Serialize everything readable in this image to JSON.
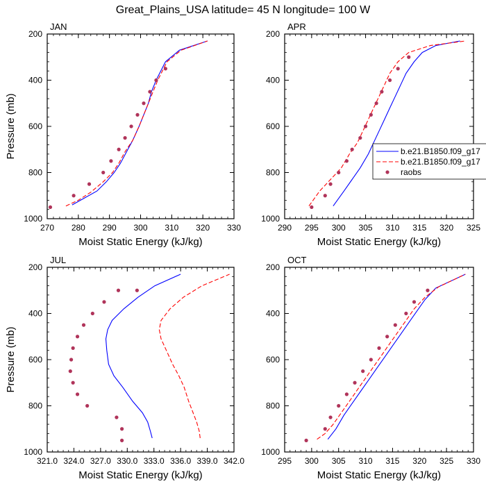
{
  "title": "Great_Plains_USA  latitude= 45 N longitude= 100 W",
  "legend": {
    "entries": [
      {
        "name": "b.e21.B1850.f09_g17",
        "style": "solid",
        "color": "#0000ff"
      },
      {
        "name": "b.e21.B1850.f09_g17",
        "style": "dashed",
        "color": "#ff0000"
      },
      {
        "name": "raobs",
        "style": "marker",
        "color": "#b0345a"
      }
    ]
  },
  "colors": {
    "model_solid": "#0000ff",
    "model_dashed": "#ff0000",
    "raobs": "#b0345a"
  },
  "chart_data": [
    {
      "type": "line",
      "title": "JAN",
      "xlabel": "Moist Static Energy (kJ/kg)",
      "ylabel": "Pressure (mb)",
      "xlim": [
        270,
        330
      ],
      "ylim": [
        1000,
        200
      ],
      "xticks": [
        "270",
        "280",
        "290",
        "300",
        "310",
        "320",
        "330"
      ],
      "xtick_values": [
        270,
        280,
        290,
        300,
        310,
        320,
        330
      ],
      "yticks": [
        "200",
        "400",
        "600",
        "800",
        "1000"
      ],
      "ytick_values": [
        200,
        400,
        600,
        800,
        1000
      ],
      "series": [
        {
          "name": "b.e21.B1850.f09_g17",
          "style": "solid",
          "x": [
            278,
            282,
            286,
            289,
            291.5,
            293.5,
            295.5,
            297.5,
            299.5,
            301,
            302.5,
            303.5,
            305,
            306.5,
            308,
            312.5,
            321.5
          ],
          "y": [
            940,
            910,
            880,
            840,
            800,
            760,
            710,
            660,
            600,
            550,
            500,
            450,
            400,
            360,
            320,
            270,
            230
          ]
        },
        {
          "name": "b.e21.B1850.f09_g17",
          "style": "dashed",
          "x": [
            276,
            280,
            284,
            288,
            291,
            293,
            295,
            297.5,
            299.5,
            301,
            302.5,
            304,
            305.5,
            307,
            308.5,
            313,
            321.5
          ],
          "y": [
            945,
            920,
            885,
            840,
            800,
            760,
            710,
            660,
            600,
            550,
            500,
            450,
            400,
            360,
            320,
            270,
            230
          ]
        },
        {
          "name": "raobs",
          "style": "marker",
          "x": [
            271,
            278.5,
            283.5,
            288,
            290.5,
            293,
            295,
            297,
            299,
            301,
            303,
            305,
            308
          ],
          "y": [
            950,
            900,
            850,
            800,
            750,
            700,
            650,
            600,
            550,
            500,
            450,
            400,
            350
          ]
        }
      ]
    },
    {
      "type": "line",
      "title": "APR",
      "xlabel": "Moist Static Energy (kJ/kg)",
      "ylabel": "",
      "xlim": [
        290,
        325
      ],
      "ylim": [
        1000,
        200
      ],
      "xticks": [
        "290",
        "295",
        "300",
        "305",
        "310",
        "315",
        "320",
        "325"
      ],
      "xtick_values": [
        290,
        295,
        300,
        305,
        310,
        315,
        320,
        325
      ],
      "yticks": [
        "200",
        "400",
        "600",
        "800",
        "1000"
      ],
      "ytick_values": [
        200,
        400,
        600,
        800,
        1000
      ],
      "series": [
        {
          "name": "b.e21.B1850.f09_g17",
          "style": "solid",
          "x": [
            299,
            301,
            302.5,
            304,
            305.5,
            306.5,
            307.5,
            308.5,
            309.5,
            310.5,
            311.5,
            312.5,
            314,
            315.5,
            318,
            322.5
          ],
          "y": [
            945,
            880,
            830,
            780,
            720,
            670,
            620,
            570,
            520,
            470,
            420,
            370,
            320,
            280,
            250,
            230
          ]
        },
        {
          "name": "b.e21.B1850.f09_g17",
          "style": "dashed",
          "x": [
            294.5,
            296.5,
            298.5,
            300.5,
            302,
            303.5,
            304.5,
            305.5,
            306.5,
            307.5,
            308.5,
            309.5,
            311,
            313,
            317,
            323.5
          ],
          "y": [
            945,
            880,
            830,
            780,
            720,
            670,
            620,
            570,
            520,
            470,
            420,
            370,
            320,
            280,
            250,
            230
          ]
        },
        {
          "name": "raobs",
          "style": "marker",
          "x": [
            295,
            297.5,
            298.5,
            300,
            301.5,
            302.5,
            304,
            305,
            306,
            307,
            308,
            309.5,
            311,
            313
          ],
          "y": [
            950,
            900,
            850,
            800,
            750,
            700,
            650,
            600,
            550,
            500,
            450,
            400,
            350,
            300
          ]
        }
      ]
    },
    {
      "type": "line",
      "title": "JUL",
      "xlabel": "Moist Static Energy (kJ/kg)",
      "ylabel": "Pressure (mb)",
      "xlim": [
        321.0,
        342.0
      ],
      "ylim": [
        1000,
        200
      ],
      "xticks": [
        "321.0",
        "324.0",
        "327.0",
        "330.0",
        "333.0",
        "336.0",
        "339.0",
        "342.0"
      ],
      "xtick_values": [
        321,
        324,
        327,
        330,
        333,
        336,
        339,
        342
      ],
      "yticks": [
        "200",
        "400",
        "600",
        "800",
        "1000"
      ],
      "ytick_values": [
        200,
        400,
        600,
        800,
        1000
      ],
      "series": [
        {
          "name": "b.e21.B1850.f09_g17",
          "style": "solid",
          "x": [
            332.8,
            332.6,
            332.3,
            331.7,
            330.6,
            329.5,
            328.5,
            327.9,
            327.7,
            327.6,
            327.8,
            328.3,
            329.6,
            331.2,
            333.1,
            336
          ],
          "y": [
            940,
            910,
            870,
            830,
            780,
            720,
            670,
            620,
            560,
            510,
            470,
            430,
            380,
            330,
            280,
            230
          ]
        },
        {
          "name": "b.e21.B1850.f09_g17",
          "style": "dashed",
          "x": [
            338.2,
            338.1,
            337.8,
            337.4,
            336.9,
            336.4,
            335.8,
            335.1,
            334.4,
            333.8,
            333.6,
            333.8,
            334.8,
            336.3,
            338.4,
            341.5
          ],
          "y": [
            940,
            910,
            870,
            830,
            780,
            720,
            670,
            620,
            560,
            510,
            470,
            430,
            380,
            330,
            280,
            230
          ]
        },
        {
          "name": "raobs",
          "style": "marker",
          "x": [
            329.4,
            329.4,
            328.8,
            325.5,
            324.4,
            323.9,
            323.6,
            323.7,
            323.9,
            324.4,
            325.1,
            326.1,
            327.4,
            329.0,
            331.1
          ],
          "y": [
            950,
            900,
            850,
            800,
            750,
            700,
            650,
            600,
            550,
            500,
            450,
            400,
            350,
            300,
            300
          ]
        }
      ]
    },
    {
      "type": "line",
      "title": "OCT",
      "xlabel": "Moist Static Energy (kJ/kg)",
      "ylabel": "",
      "xlim": [
        295,
        330
      ],
      "ylim": [
        1000,
        200
      ],
      "xticks": [
        "295",
        "300",
        "305",
        "310",
        "315",
        "320",
        "325",
        "330"
      ],
      "xtick_values": [
        295,
        300,
        305,
        310,
        315,
        320,
        325,
        330
      ],
      "yticks": [
        "200",
        "400",
        "600",
        "800",
        "1000"
      ],
      "ytick_values": [
        200,
        400,
        600,
        800,
        1000
      ],
      "series": [
        {
          "name": "b.e21.B1850.f09_g17",
          "style": "solid",
          "x": [
            303,
            304.5,
            306,
            307.5,
            309,
            310.5,
            312,
            313.5,
            315,
            316.5,
            318,
            319.5,
            321,
            323,
            328.5
          ],
          "y": [
            945,
            900,
            840,
            790,
            740,
            690,
            640,
            590,
            540,
            490,
            440,
            390,
            340,
            290,
            230
          ]
        },
        {
          "name": "b.e21.B1850.f09_g17",
          "style": "dashed",
          "x": [
            301,
            302.5,
            304,
            305.5,
            307,
            308.5,
            310,
            311.5,
            313,
            314.5,
            316,
            317.5,
            319,
            321,
            323.5,
            328.5
          ],
          "y": [
            945,
            920,
            880,
            830,
            780,
            730,
            680,
            630,
            580,
            530,
            480,
            430,
            380,
            330,
            285,
            230
          ]
        },
        {
          "name": "raobs",
          "style": "marker",
          "x": [
            299,
            302.5,
            303.5,
            305,
            306.5,
            308,
            309.5,
            311,
            312.5,
            314,
            315.5,
            317.5,
            319,
            321.5
          ],
          "y": [
            950,
            900,
            850,
            800,
            750,
            700,
            650,
            600,
            550,
            500,
            450,
            400,
            350,
            300
          ]
        }
      ]
    }
  ]
}
